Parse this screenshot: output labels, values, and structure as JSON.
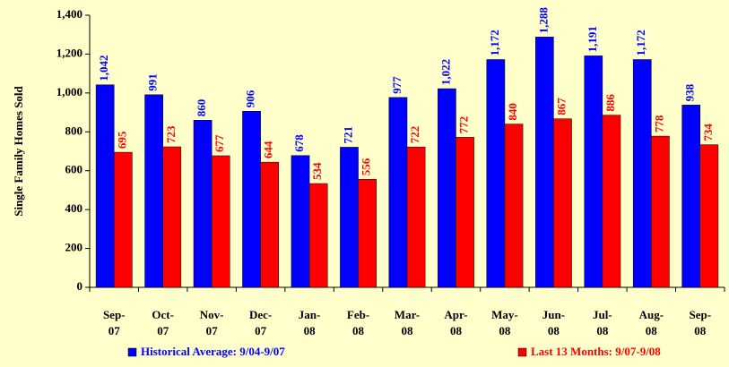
{
  "chart_data": {
    "type": "bar",
    "y_label": "Single Family Homes Sold",
    "categories": [
      "Sep-07",
      "Oct-07",
      "Nov-07",
      "Dec-07",
      "Jan-08",
      "Feb-08",
      "Mar-08",
      "Apr-08",
      "May-08",
      "Jun-08",
      "Jul-08",
      "Aug-08",
      "Sep-08"
    ],
    "series": [
      {
        "name": "Historical Average: 9/04-9/07",
        "color": "#0000FF",
        "values": [
          1042,
          991,
          860,
          906,
          678,
          721,
          977,
          1022,
          1172,
          1288,
          1191,
          1172,
          938
        ],
        "value_labels": [
          "1,042",
          "991",
          "860",
          "906",
          "678",
          "721",
          "977",
          "1,022",
          "1,172",
          "1,288",
          "1,191",
          "1,172",
          "938"
        ]
      },
      {
        "name": "Last 13 Months: 9/07-9/08",
        "color": "#FF0000",
        "values": [
          695,
          723,
          677,
          644,
          534,
          556,
          722,
          772,
          840,
          867,
          886,
          778,
          734
        ]
      }
    ],
    "ylim": [
      0,
      1400
    ],
    "yticks": [
      0,
      200,
      400,
      600,
      800,
      {
        "value": 1000,
        "label": "1,000"
      },
      {
        "value": 1200,
        "label": "1,200"
      },
      {
        "value": 1400,
        "label": "1,400"
      }
    ],
    "grid": false,
    "legend": "bottom"
  }
}
